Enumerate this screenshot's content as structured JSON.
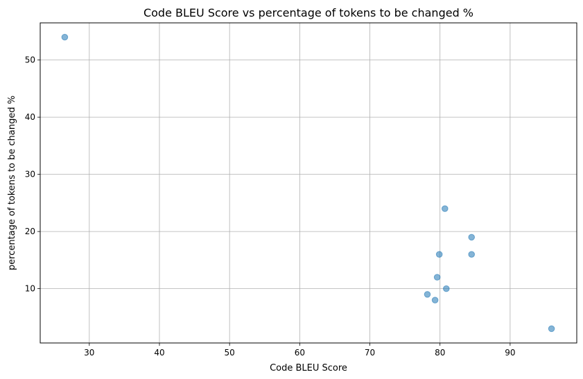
{
  "chart_data": {
    "type": "scatter",
    "title": "Code BLEU Score vs percentage of tokens to be changed %",
    "xlabel": "Code BLEU Score",
    "ylabel": "percentage of tokens to be changed %",
    "xlim": [
      23,
      99.5
    ],
    "ylim": [
      0.5,
      56.5
    ],
    "xticks": [
      30,
      40,
      50,
      60,
      70,
      80,
      90
    ],
    "yticks": [
      10,
      20,
      30,
      40,
      50
    ],
    "grid": true,
    "marker_color": "#1f77b4",
    "marker_alpha": 0.55,
    "points": [
      {
        "x": 26.5,
        "y": 54
      },
      {
        "x": 80.7,
        "y": 24
      },
      {
        "x": 84.5,
        "y": 19
      },
      {
        "x": 79.9,
        "y": 16
      },
      {
        "x": 84.5,
        "y": 16
      },
      {
        "x": 79.6,
        "y": 12
      },
      {
        "x": 80.9,
        "y": 10
      },
      {
        "x": 78.2,
        "y": 9
      },
      {
        "x": 79.3,
        "y": 8
      },
      {
        "x": 95.9,
        "y": 3
      }
    ]
  }
}
